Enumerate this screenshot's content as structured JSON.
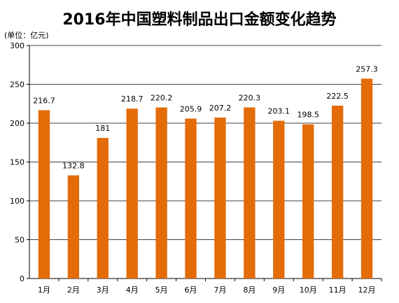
{
  "chart_data": {
    "type": "bar",
    "title": "2016年中国塑料制品出口金额变化趋势",
    "unit_label": "(单位：亿元)",
    "categories": [
      "1月",
      "2月",
      "3月",
      "4月",
      "5月",
      "6月",
      "7月",
      "8月",
      "9月",
      "10月",
      "11月",
      "12月"
    ],
    "values": [
      216.7,
      132.8,
      181,
      218.7,
      220.2,
      205.9,
      207.2,
      220.3,
      203.1,
      198.5,
      222.5,
      257.3
    ],
    "data_labels": [
      "216.7",
      "132.8",
      "181",
      "218.7",
      "220.2",
      "205.9",
      "207.2",
      "220.3",
      "203.1",
      "198.5",
      "222.5",
      "257.3"
    ],
    "ylim": [
      0,
      300
    ],
    "yticks": [
      0,
      50,
      100,
      150,
      200,
      250,
      300
    ],
    "grid": true,
    "bar_color": "#E36C09"
  }
}
